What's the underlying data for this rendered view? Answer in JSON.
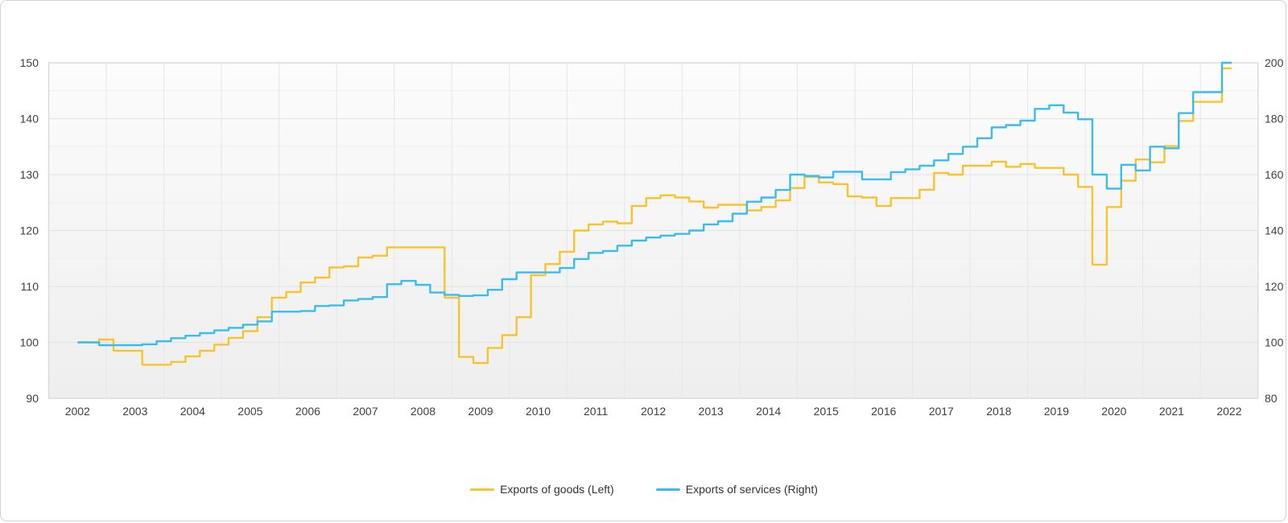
{
  "chart": {
    "legend": [
      {
        "label": "Exports of goods (Left)",
        "color": "#F8C32C"
      },
      {
        "label": "Exports of services (Right)",
        "color": "#38BDF0"
      }
    ],
    "colors": {
      "goods_line": "#F8C32C",
      "services_line": "#38BDF0",
      "grid_major": "#e2e2e2",
      "grid_minor": "#efefef",
      "grid_vertical": "#e6e6e6",
      "plot_border": "#d9d9d9",
      "plot_bg_top": "#fcfcfc",
      "plot_bg_bottom": "#eeeeee",
      "axis_text": "#404040"
    }
  },
  "chart_data": {
    "type": "line",
    "step": "center",
    "grid": true,
    "legend_position": "bottom-center",
    "title": "",
    "xlabel": "",
    "ylabel_left": "",
    "ylabel_right": "",
    "x_tick_labels": [
      "2002",
      "2003",
      "2004",
      "2005",
      "2006",
      "2007",
      "2008",
      "2009",
      "2010",
      "2011",
      "2012",
      "2013",
      "2014",
      "2015",
      "2016",
      "2017",
      "2018",
      "2019",
      "2020",
      "2021",
      "2022"
    ],
    "x_start": "2002-Q3",
    "x_end": "2022-Q3",
    "frequency": "quarterly",
    "left_axis": {
      "range": [
        90,
        150
      ],
      "ticks": [
        150,
        140,
        130,
        120,
        110,
        100,
        90
      ],
      "minor_step": 5
    },
    "right_axis": {
      "range": [
        80,
        200
      ],
      "ticks": [
        200,
        180,
        160,
        140,
        120,
        100,
        80
      ],
      "minor_step": 10
    },
    "series": [
      {
        "name": "Exports of goods (Left)",
        "axis": "left",
        "color": "#F8C32C",
        "values": [
          100,
          100,
          100.5,
          98.5,
          98.5,
          96,
          96,
          96.5,
          97.5,
          98.5,
          99.6,
          100.8,
          102,
          104.5,
          108,
          109,
          110.7,
          111.6,
          113.4,
          113.6,
          115.2,
          115.5,
          117,
          117,
          117,
          117,
          108,
          97.4,
          96.3,
          99,
          101.3,
          104.5,
          112,
          114,
          116.2,
          120,
          121.1,
          121.6,
          121.3,
          124.4,
          125.8,
          126.3,
          125.9,
          125.2,
          124.1,
          124.6,
          124.6,
          123.6,
          124.2,
          125.4,
          127.6,
          129.6,
          128.6,
          128.3,
          126.1,
          125.9,
          124.4,
          125.8,
          125.8,
          127.3,
          130.3,
          130,
          131.6,
          131.6,
          132.3,
          131.4,
          131.9,
          131.2,
          131.2,
          130,
          127.8,
          113.9,
          124.2,
          128.9,
          132.7,
          132.2,
          135.1,
          139.6,
          143,
          143,
          149
        ]
      },
      {
        "name": "Exports of services (Right)",
        "axis": "right",
        "color": "#38BDF0",
        "values": [
          100,
          100,
          99,
          99,
          99,
          99.3,
          100.4,
          101.5,
          102.4,
          103.3,
          104.3,
          105.2,
          106.3,
          107.5,
          111,
          111,
          111.2,
          113,
          113.2,
          115,
          115.5,
          116.2,
          120.8,
          122,
          120.6,
          117.8,
          117,
          116.6,
          116.8,
          118.8,
          122.6,
          125,
          125,
          125,
          126.6,
          129.8,
          132,
          132.7,
          134.6,
          136.4,
          137.5,
          138.2,
          138.8,
          140,
          142.2,
          143.3,
          146,
          150.3,
          151.8,
          154.5,
          160,
          159.5,
          159,
          161,
          161,
          158.3,
          158.3,
          160.9,
          161.9,
          163.2,
          165.1,
          167.4,
          170,
          173,
          176.9,
          177.7,
          179.3,
          183.5,
          184.8,
          182.2,
          179.8,
          160,
          155,
          163.5,
          161.5,
          170,
          169.4,
          182,
          189.5,
          189.5,
          200
        ]
      }
    ]
  }
}
